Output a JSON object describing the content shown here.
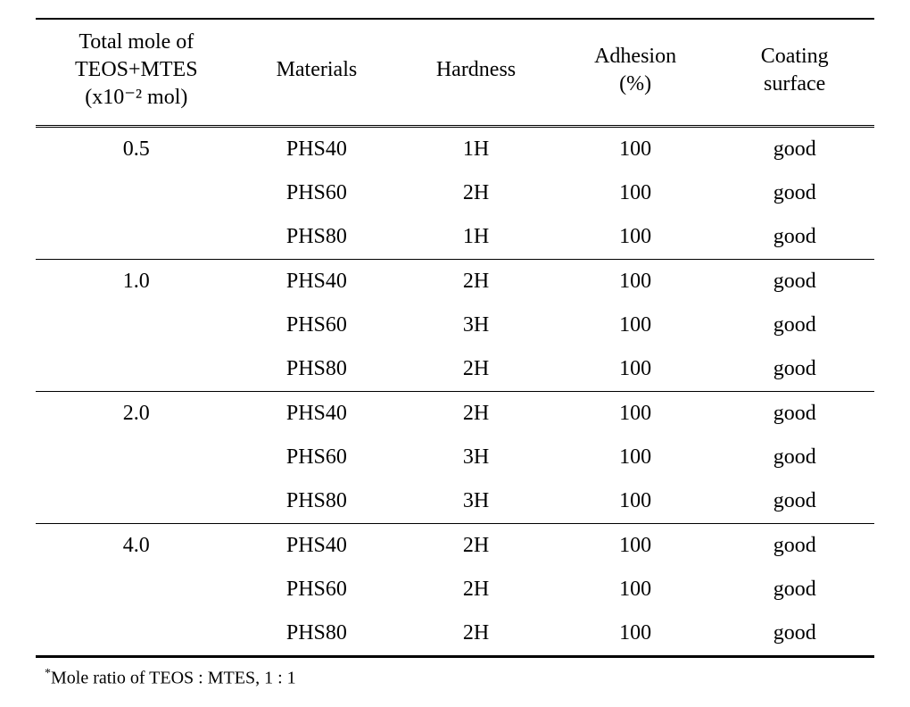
{
  "table": {
    "columns": [
      "Total mole of\nTEOS+MTES\n(x10⁻² mol)",
      "Materials",
      "Hardness",
      "Adhesion\n(%)",
      "Coating\nsurface"
    ],
    "groups": [
      {
        "mole": "0.5",
        "rows": [
          {
            "material": "PHS40",
            "hardness": "1H",
            "adhesion": "100",
            "surface": "good"
          },
          {
            "material": "PHS60",
            "hardness": "2H",
            "adhesion": "100",
            "surface": "good"
          },
          {
            "material": "PHS80",
            "hardness": "1H",
            "adhesion": "100",
            "surface": "good"
          }
        ]
      },
      {
        "mole": "1.0",
        "rows": [
          {
            "material": "PHS40",
            "hardness": "2H",
            "adhesion": "100",
            "surface": "good"
          },
          {
            "material": "PHS60",
            "hardness": "3H",
            "adhesion": "100",
            "surface": "good"
          },
          {
            "material": "PHS80",
            "hardness": "2H",
            "adhesion": "100",
            "surface": "good"
          }
        ]
      },
      {
        "mole": "2.0",
        "rows": [
          {
            "material": "PHS40",
            "hardness": "2H",
            "adhesion": "100",
            "surface": "good"
          },
          {
            "material": "PHS60",
            "hardness": "3H",
            "adhesion": "100",
            "surface": "good"
          },
          {
            "material": "PHS80",
            "hardness": "3H",
            "adhesion": "100",
            "surface": "good"
          }
        ]
      },
      {
        "mole": "4.0",
        "rows": [
          {
            "material": "PHS40",
            "hardness": "2H",
            "adhesion": "100",
            "surface": "good"
          },
          {
            "material": "PHS60",
            "hardness": "2H",
            "adhesion": "100",
            "surface": "good"
          },
          {
            "material": "PHS80",
            "hardness": "2H",
            "adhesion": "100",
            "surface": "good"
          }
        ]
      }
    ]
  },
  "footnote": {
    "marker": "*",
    "text": "Mole ratio of TEOS : MTES, 1 : 1"
  },
  "style": {
    "background_color": "#ffffff",
    "text_color": "#000000",
    "border_color": "#000000",
    "font_family": "serif",
    "header_fontsize": 24,
    "cell_fontsize": 24,
    "footnote_fontsize": 20,
    "top_border_width": 2.5,
    "bottom_border_width": 3,
    "group_sep_width": 1,
    "header_border_style": "double"
  }
}
